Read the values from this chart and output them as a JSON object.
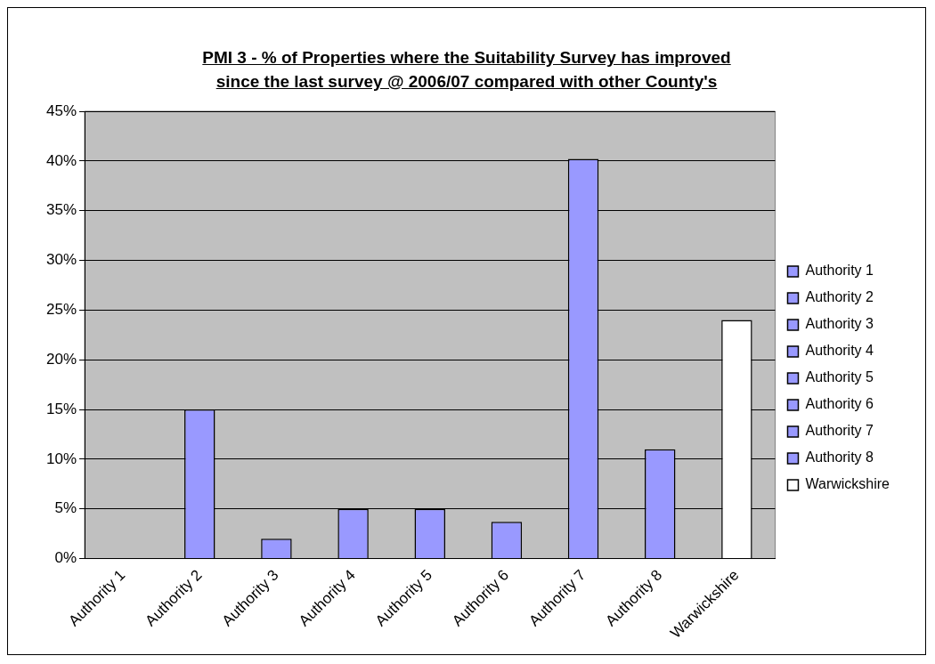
{
  "chart_data": {
    "type": "bar",
    "title": "PMI 3 - % of Properties where the Suitability Survey has improved since the last survey @ 2006/07 compared with other County's",
    "categories": [
      "Authority 1",
      "Authority 2",
      "Authority 3",
      "Authority 4",
      "Authority 5",
      "Authority 6",
      "Authority 7",
      "Authority 8",
      "Warwickshire"
    ],
    "series": [
      {
        "name": "Authority 1",
        "color": "#9999ff",
        "values": [
          0,
          null,
          null,
          null,
          null,
          null,
          null,
          null,
          null
        ]
      },
      {
        "name": "Authority 2",
        "color": "#9999ff",
        "values": [
          null,
          15,
          null,
          null,
          null,
          null,
          null,
          null,
          null
        ]
      },
      {
        "name": "Authority 3",
        "color": "#9999ff",
        "values": [
          null,
          null,
          2,
          null,
          null,
          null,
          null,
          null,
          null
        ]
      },
      {
        "name": "Authority 4",
        "color": "#9999ff",
        "values": [
          null,
          null,
          null,
          5,
          null,
          null,
          null,
          null,
          null
        ]
      },
      {
        "name": "Authority 5",
        "color": "#9999ff",
        "values": [
          null,
          null,
          null,
          null,
          5,
          null,
          null,
          null,
          null
        ]
      },
      {
        "name": "Authority 6",
        "color": "#9999ff",
        "values": [
          null,
          null,
          null,
          null,
          null,
          3.7,
          null,
          null,
          null
        ]
      },
      {
        "name": "Authority 7",
        "color": "#9999ff",
        "values": [
          null,
          null,
          null,
          null,
          null,
          null,
          40.2,
          null,
          null
        ]
      },
      {
        "name": "Authority 8",
        "color": "#9999ff",
        "values": [
          null,
          null,
          null,
          null,
          null,
          null,
          null,
          11,
          null
        ]
      },
      {
        "name": "Warwickshire",
        "color": "#ffffff",
        "values": [
          null,
          null,
          null,
          null,
          null,
          null,
          null,
          null,
          24
        ]
      }
    ],
    "ylim": [
      0,
      45
    ],
    "yticks": [
      {
        "value": 0,
        "label": "0%"
      },
      {
        "value": 5,
        "label": "5%"
      },
      {
        "value": 10,
        "label": "10%"
      },
      {
        "value": 15,
        "label": "15%"
      },
      {
        "value": 20,
        "label": "20%"
      },
      {
        "value": 25,
        "label": "25%"
      },
      {
        "value": 30,
        "label": "30%"
      },
      {
        "value": 35,
        "label": "35%"
      },
      {
        "value": 40,
        "label": "40%"
      },
      {
        "value": 45,
        "label": "45%"
      }
    ],
    "grid": "y",
    "legend": "right"
  }
}
